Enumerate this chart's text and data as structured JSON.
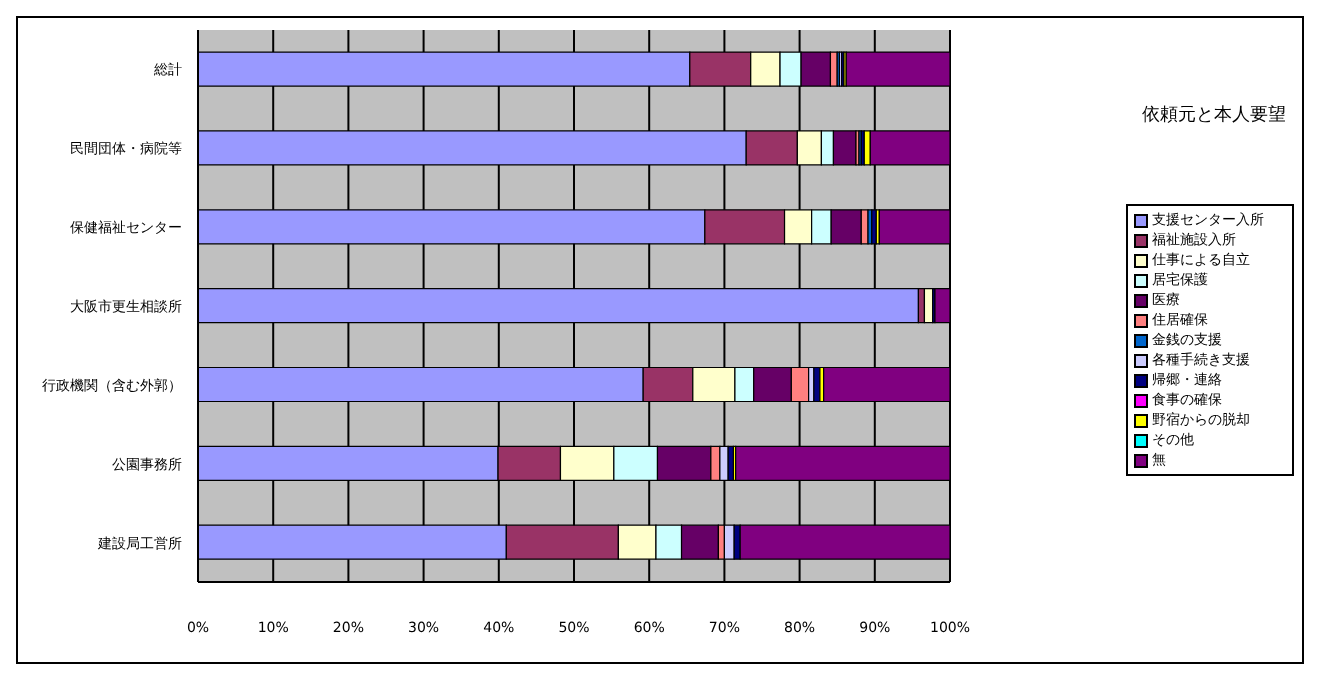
{
  "chart_data": {
    "type": "bar",
    "orientation": "horizontal",
    "stacked": true,
    "title": "依頼元と本人要望",
    "categories": [
      "総計",
      "民間団体・病院等",
      "保健福祉センター",
      "大阪市更生相談所",
      "行政機関（含む外郭）",
      "公園事務所",
      "建設局工営所"
    ],
    "series": [
      {
        "name": "支援センター入所",
        "color": "#9999ff",
        "values": [
          65.4,
          72.9,
          67.4,
          95.8,
          59.2,
          39.9,
          41.0
        ]
      },
      {
        "name": "福祉施設入所",
        "color": "#993366",
        "values": [
          8.1,
          6.8,
          10.6,
          0.8,
          6.6,
          8.3,
          14.9
        ]
      },
      {
        "name": "仕事による自立",
        "color": "#ffffcc",
        "values": [
          3.9,
          3.2,
          3.6,
          1.1,
          5.6,
          7.1,
          5.0
        ]
      },
      {
        "name": "居宅保護",
        "color": "#ccffff",
        "values": [
          2.8,
          1.6,
          2.6,
          0,
          2.5,
          5.8,
          3.4
        ]
      },
      {
        "name": "医療",
        "color": "#660066",
        "values": [
          3.9,
          3.0,
          4.0,
          0,
          5.0,
          7.1,
          4.9
        ]
      },
      {
        "name": "住居確保",
        "color": "#ff8080",
        "values": [
          0.9,
          0.4,
          0.9,
          0,
          2.3,
          1.2,
          0.8
        ]
      },
      {
        "name": "金銭の支援",
        "color": "#0066cc",
        "values": [
          0.3,
          0.3,
          0.5,
          0,
          0,
          0,
          0
        ]
      },
      {
        "name": "各種手続き支援",
        "color": "#ccccff",
        "values": [
          0.3,
          0,
          0,
          0,
          0.7,
          1.1,
          1.3
        ]
      },
      {
        "name": "帰郷・連絡",
        "color": "#000080",
        "values": [
          0.3,
          0.4,
          0.6,
          0.3,
          0.8,
          0.7,
          0.8
        ]
      },
      {
        "name": "食事の確保",
        "color": "#ff00ff",
        "values": [
          0,
          0,
          0,
          0,
          0,
          0,
          0
        ]
      },
      {
        "name": "野宿からの脱却",
        "color": "#ffff00",
        "values": [
          0.3,
          0.8,
          0.4,
          0,
          0.5,
          0.3,
          0
        ]
      },
      {
        "name": "その他",
        "color": "#00ffff",
        "values": [
          0,
          0,
          0,
          0,
          0,
          0,
          0
        ]
      },
      {
        "name": "無",
        "color": "#800080",
        "values": [
          13.8,
          10.6,
          9.4,
          2.0,
          16.8,
          28.5,
          27.9
        ]
      }
    ],
    "xlim": [
      0,
      100
    ],
    "xticks": [
      {
        "value": 0,
        "label": "0%"
      },
      {
        "value": 10,
        "label": "10%"
      },
      {
        "value": 20,
        "label": "20%"
      },
      {
        "value": 30,
        "label": "30%"
      },
      {
        "value": 40,
        "label": "40%"
      },
      {
        "value": 50,
        "label": "50%"
      },
      {
        "value": 60,
        "label": "60%"
      },
      {
        "value": 70,
        "label": "70%"
      },
      {
        "value": 80,
        "label": "80%"
      },
      {
        "value": 90,
        "label": "90%"
      },
      {
        "value": 100,
        "label": "100%"
      }
    ],
    "grid": "x",
    "legend": "right"
  }
}
